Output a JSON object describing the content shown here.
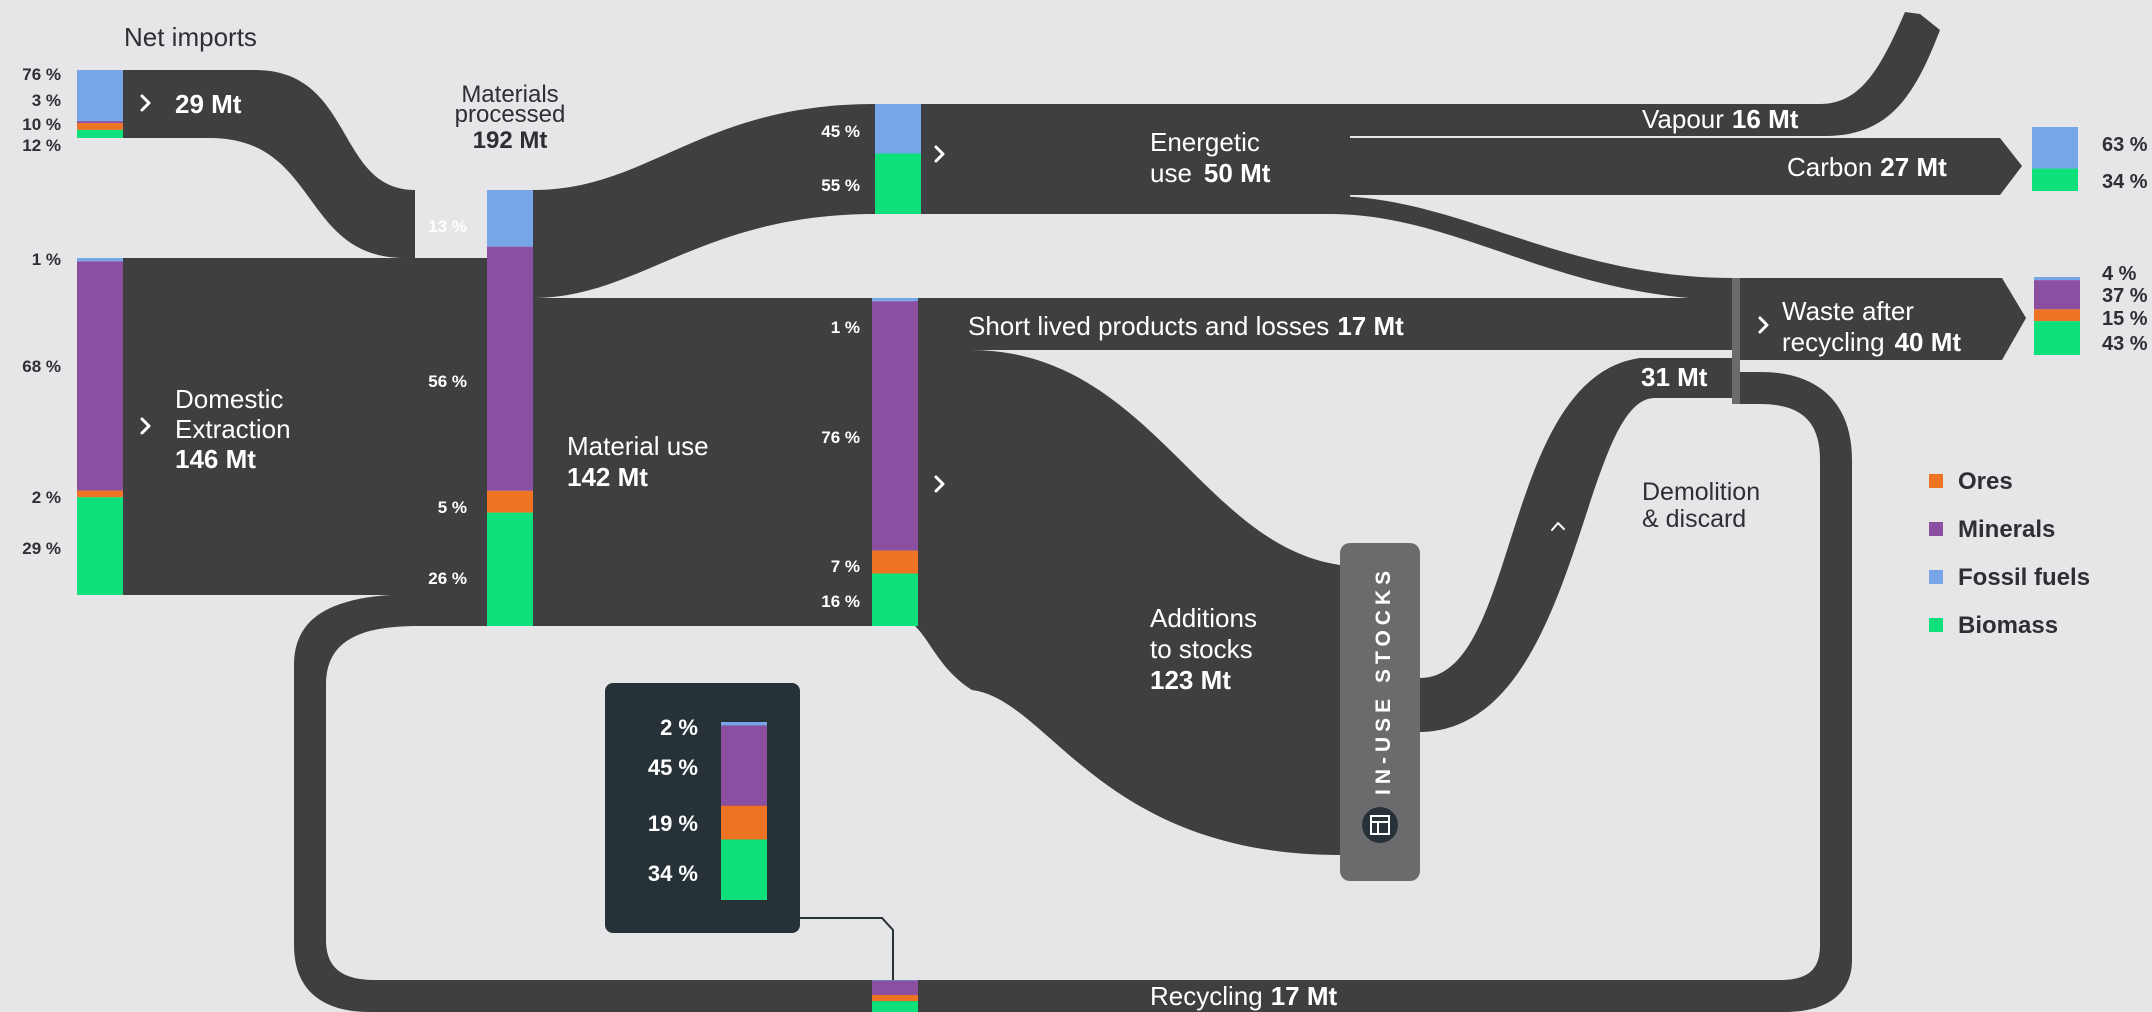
{
  "colors": {
    "ores": "#ee7424",
    "minerals": "#8a4fa0",
    "fossil_fuels": "#76a6e8",
    "biomass": "#0ee07c",
    "flow": "#3f3f42",
    "stocks_box": "#6b6b6e",
    "popup": "#263238",
    "background": "#e6e6e8"
  },
  "nodes": {
    "net_imports": {
      "title": "Net imports",
      "value": "29 Mt",
      "pcts": [
        "76 %",
        "3 %",
        "10 %",
        "12 %"
      ]
    },
    "domestic_extraction": {
      "line1": "Domestic",
      "line2": "Extraction",
      "value": "146 Mt",
      "pcts": [
        "1 %",
        "68 %",
        "2 %",
        "29 %"
      ]
    },
    "materials_processed": {
      "line1": "Materials",
      "line2": "processed",
      "value": "192 Mt",
      "pcts": [
        "13 %",
        "56 %",
        "5 %",
        "26 %"
      ]
    },
    "material_use": {
      "line1": "Material use",
      "value": "142 Mt",
      "pcts": [
        "1 %",
        "76 %",
        "7 %",
        "16 %"
      ]
    },
    "energetic_use": {
      "line1": "Energetic",
      "line2": "use",
      "value": "50 Mt",
      "pcts": [
        "45 %",
        "55 %"
      ]
    },
    "vapour": {
      "label": "Vapour",
      "value": "16 Mt"
    },
    "carbon": {
      "label": "Carbon",
      "value": "27 Mt",
      "pcts": [
        "63 %",
        "34 %"
      ]
    },
    "short_lived": {
      "label": "Short lived products and losses",
      "value": "17 Mt"
    },
    "waste": {
      "line1": "Waste after",
      "line2": "recycling",
      "value": "40 Mt",
      "pcts": [
        "4 %",
        "37 %",
        "15 %",
        "43 %"
      ]
    },
    "demolition": {
      "line1": "Demolition",
      "line2": "& discard",
      "inflow": "31 Mt"
    },
    "additions": {
      "line1": "Additions",
      "line2": "to stocks",
      "value": "123 Mt"
    },
    "stocks": {
      "label": "IN-USE STOCKS"
    },
    "recycling": {
      "label": "Recycling",
      "value": "17 Mt",
      "popup_pcts": [
        "2 %",
        "45 %",
        "19 %",
        "34 %"
      ]
    }
  },
  "legend": [
    {
      "label": "Ores",
      "key": "ores"
    },
    {
      "label": "Minerals",
      "key": "minerals"
    },
    {
      "label": "Fossil fuels",
      "key": "fossil_fuels"
    },
    {
      "label": "Biomass",
      "key": "biomass"
    }
  ]
}
